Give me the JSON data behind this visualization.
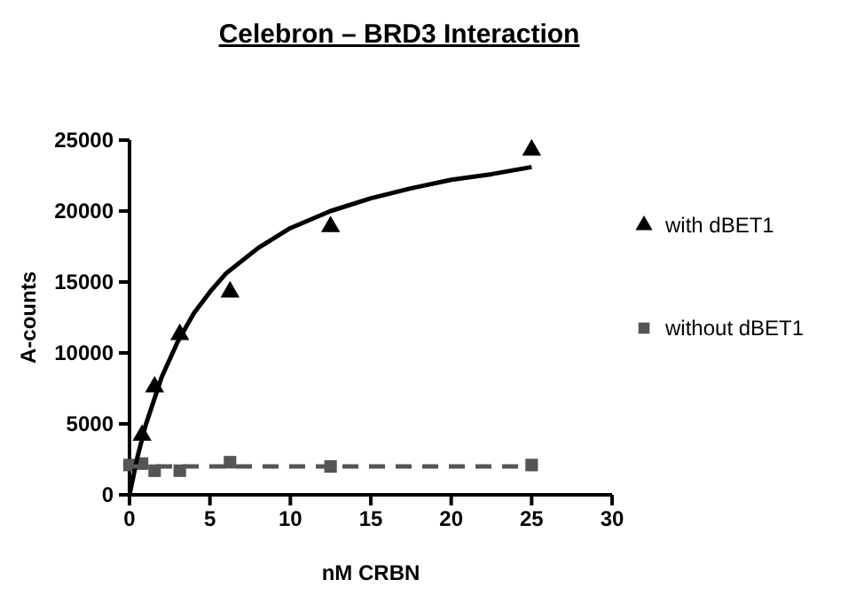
{
  "chart_data": {
    "type": "scatter",
    "title": "Celebron – BRD3 Interaction",
    "xlabel": "nM CRBN",
    "ylabel": "A-counts",
    "xlim": [
      0,
      30
    ],
    "xticks": [
      0,
      5,
      10,
      15,
      20,
      25,
      30
    ],
    "ylim": [
      0,
      25000
    ],
    "yticks": [
      0,
      5000,
      10000,
      15000,
      20000,
      25000
    ],
    "grid": false,
    "legend": "right",
    "series": [
      {
        "name": "with dBET1",
        "marker": "triangle",
        "color": "#000000",
        "x": [
          0.78,
          1.56,
          3.125,
          6.25,
          12.5,
          25
        ],
        "values": [
          4200,
          7600,
          11300,
          14300,
          18900,
          24300
        ]
      },
      {
        "name": "without dBET1",
        "marker": "square",
        "color": "#555555",
        "x": [
          0,
          0.78,
          1.56,
          3.125,
          6.25,
          12.5,
          25
        ],
        "values": [
          2100,
          2200,
          1700,
          1700,
          2300,
          2000,
          2100
        ]
      },
      {
        "type": "line",
        "marker": "none",
        "line_style": "solid",
        "color": "#000000",
        "x": [
          0,
          0.5,
          1,
          2,
          3,
          4,
          5,
          6,
          8,
          10,
          12.5,
          15,
          17.5,
          20,
          22.5,
          25
        ],
        "values": [
          0,
          2700,
          4900,
          8300,
          10800,
          12800,
          14300,
          15600,
          17400,
          18800,
          20000,
          20900,
          21600,
          22200,
          22600,
          23100
        ]
      },
      {
        "type": "line",
        "marker": "none",
        "line_style": "dashed",
        "color": "#555555",
        "x": [
          0,
          25
        ],
        "values": [
          2000,
          2000
        ]
      }
    ]
  }
}
